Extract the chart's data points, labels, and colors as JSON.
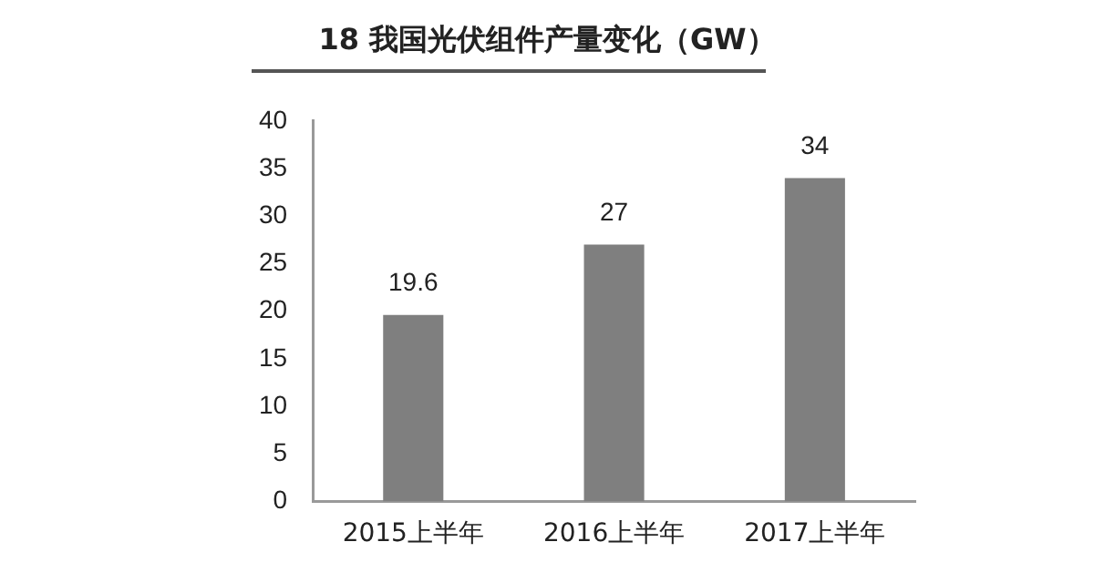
{
  "chart_data": {
    "type": "bar",
    "title": "18 我国光伏组件产量变化（GW）",
    "categories": [
      "2015上半年",
      "2016上半年",
      "2017上半年"
    ],
    "values": [
      19.6,
      27,
      34
    ],
    "color": "#7f7f7f",
    "ylim": [
      0,
      40
    ],
    "yticks": [
      0,
      5,
      10,
      15,
      20,
      25,
      30,
      35,
      40
    ],
    "grid": false,
    "legend": false,
    "data_labels": true
  }
}
